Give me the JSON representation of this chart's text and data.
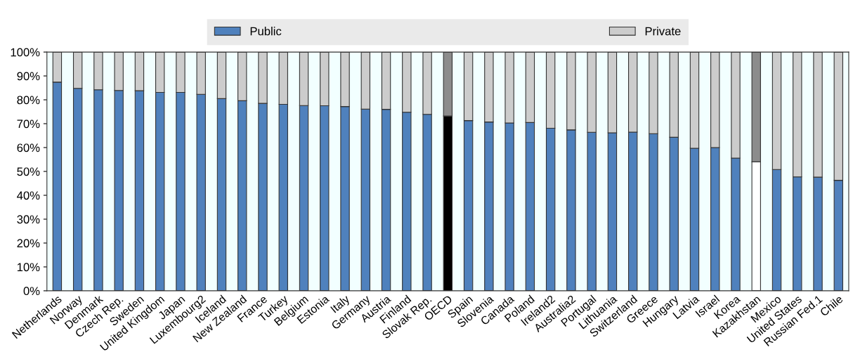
{
  "chart_data": {
    "type": "bar",
    "stacked": true,
    "categories": [
      "Netherlands",
      "Norway",
      "Denmark",
      "Czech Rep.",
      "Sweden",
      "United Kingdom",
      "Japan",
      "Luxembourg2",
      "Iceland",
      "New Zealand",
      "France",
      "Turkey",
      "Belgium",
      "Estonia",
      "Italy",
      "Germany",
      "Austria",
      "Finland",
      "Slovak Rep.",
      "OECD",
      "Spain",
      "Slovenia",
      "Canada",
      "Poland",
      "Ireland2",
      "Australia2",
      "Portugal",
      "Lithuania",
      "Switzerland",
      "Greece",
      "Hungary",
      "Latvia",
      "Israel",
      "Korea",
      "Kazakhstan",
      "Mexico",
      "United States",
      "Russian Fed.1",
      "Chile"
    ],
    "series": [
      {
        "name": "Public",
        "color": "#4f81bd",
        "colors": [
          "#4f81bd",
          "#4f81bd",
          "#4f81bd",
          "#4f81bd",
          "#4f81bd",
          "#4f81bd",
          "#4f81bd",
          "#4f81bd",
          "#4f81bd",
          "#4f81bd",
          "#4f81bd",
          "#4f81bd",
          "#4f81bd",
          "#4f81bd",
          "#4f81bd",
          "#4f81bd",
          "#4f81bd",
          "#4f81bd",
          "#4f81bd",
          "#000000",
          "#4f81bd",
          "#4f81bd",
          "#4f81bd",
          "#4f81bd",
          "#4f81bd",
          "#4f81bd",
          "#4f81bd",
          "#4f81bd",
          "#4f81bd",
          "#4f81bd",
          "#4f81bd",
          "#4f81bd",
          "#4f81bd",
          "#4f81bd",
          "#ffffff",
          "#4f81bd",
          "#4f81bd",
          "#4f81bd",
          "#4f81bd"
        ],
        "values": [
          87.4,
          84.8,
          84.2,
          83.9,
          83.8,
          83.1,
          83.1,
          82.3,
          80.5,
          79.6,
          78.5,
          78.1,
          77.6,
          77.5,
          77.2,
          76.1,
          76.0,
          74.8,
          73.9,
          73.2,
          71.3,
          70.7,
          70.3,
          70.5,
          68.1,
          67.4,
          66.4,
          66.2,
          66.5,
          65.8,
          64.3,
          59.7,
          60.0,
          55.6,
          54.0,
          50.8,
          47.7,
          47.6,
          46.3
        ]
      },
      {
        "name": "Private",
        "color": "#cccccc",
        "colors": [
          "#cccccc",
          "#cccccc",
          "#cccccc",
          "#cccccc",
          "#cccccc",
          "#cccccc",
          "#cccccc",
          "#cccccc",
          "#cccccc",
          "#cccccc",
          "#cccccc",
          "#cccccc",
          "#cccccc",
          "#cccccc",
          "#cccccc",
          "#cccccc",
          "#cccccc",
          "#cccccc",
          "#cccccc",
          "#8c8c8c",
          "#cccccc",
          "#cccccc",
          "#cccccc",
          "#cccccc",
          "#cccccc",
          "#cccccc",
          "#cccccc",
          "#cccccc",
          "#cccccc",
          "#cccccc",
          "#cccccc",
          "#cccccc",
          "#cccccc",
          "#cccccc",
          "#8c8c8c",
          "#cccccc",
          "#cccccc",
          "#cccccc",
          "#cccccc"
        ],
        "values": [
          12.6,
          15.2,
          15.8,
          16.1,
          16.2,
          16.9,
          16.9,
          17.7,
          19.5,
          20.4,
          21.5,
          21.9,
          22.4,
          22.5,
          22.8,
          23.9,
          24.0,
          25.2,
          26.1,
          26.8,
          28.7,
          29.3,
          29.7,
          29.5,
          31.9,
          32.6,
          33.6,
          33.8,
          33.5,
          34.2,
          35.7,
          40.3,
          40.0,
          44.4,
          46.0,
          49.2,
          52.3,
          52.4,
          53.7
        ]
      }
    ],
    "ylim": [
      0,
      100
    ],
    "yticks": [
      {
        "value": 0,
        "label": "0%"
      },
      {
        "value": 10,
        "label": "10%"
      },
      {
        "value": 20,
        "label": "20%"
      },
      {
        "value": 30,
        "label": "30%"
      },
      {
        "value": 40,
        "label": "40%"
      },
      {
        "value": 50,
        "label": "50%"
      },
      {
        "value": 60,
        "label": "60%"
      },
      {
        "value": 70,
        "label": "70%"
      },
      {
        "value": 80,
        "label": "80%"
      },
      {
        "value": 90,
        "label": "90%"
      },
      {
        "value": 100,
        "label": "100%"
      }
    ],
    "grid": false,
    "legend": "top"
  }
}
